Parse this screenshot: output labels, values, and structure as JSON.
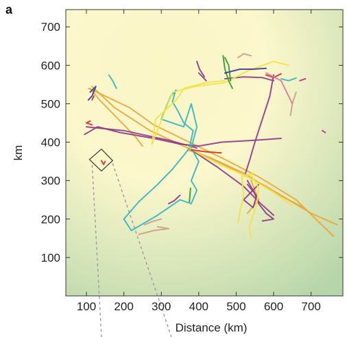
{
  "panel_label": "a",
  "chart_data": {
    "type": "line",
    "xlabel": "Distance (km)",
    "ylabel": "km",
    "xlim": [
      45,
      785
    ],
    "ylim": [
      0,
      745
    ],
    "xticks": [
      100,
      200,
      300,
      400,
      500,
      600,
      700
    ],
    "yticks": [
      100,
      200,
      300,
      400,
      500,
      600,
      700
    ],
    "xtick_labels": [
      "100",
      "200",
      "300",
      "400",
      "500",
      "600",
      "700"
    ],
    "ytick_labels": [
      "100",
      "200",
      "300",
      "400",
      "500",
      "600",
      "700"
    ],
    "background": {
      "warm": "#fbf6c6",
      "cool": "#b6d5a9"
    },
    "colors": {
      "orange": "#e7a93a",
      "purple": "#8e3a8c",
      "cyan": "#33b5c7",
      "yellow": "#f1e34a",
      "green": "#2f9a3c",
      "red": "#d6312a",
      "navy": "#3b3c97",
      "tan": "#c9a08b",
      "magenta": "#c02c8f",
      "pink": "#d97aa0"
    },
    "inset_box": [
      [
        108,
        355
      ],
      [
        140,
        382
      ],
      [
        170,
        352
      ],
      [
        140,
        325
      ]
    ],
    "series": [
      {
        "color": "orange",
        "points": [
          [
            105,
            540
          ],
          [
            150,
            520
          ],
          [
            215,
            490
          ],
          [
            280,
            445
          ],
          [
            375,
            400
          ],
          [
            470,
            355
          ],
          [
            560,
            310
          ],
          [
            660,
            250
          ],
          [
            760,
            155
          ]
        ]
      },
      {
        "color": "orange",
        "points": [
          [
            110,
            540
          ],
          [
            135,
            510
          ],
          [
            165,
            480
          ],
          [
            200,
            445
          ],
          [
            230,
            415
          ],
          [
            250,
            390
          ]
        ]
      },
      {
        "color": "orange",
        "points": [
          [
            115,
            545
          ],
          [
            175,
            490
          ],
          [
            270,
            430
          ],
          [
            370,
            385
          ],
          [
            470,
            340
          ],
          [
            580,
            285
          ],
          [
            700,
            215
          ],
          [
            770,
            185
          ]
        ]
      },
      {
        "color": "orange",
        "points": [
          [
            370,
            380
          ],
          [
            430,
            360
          ],
          [
            520,
            320
          ],
          [
            600,
            270
          ],
          [
            680,
            230
          ]
        ]
      },
      {
        "color": "orange",
        "points": [
          [
            540,
            300
          ],
          [
            560,
            250
          ],
          [
            530,
            215
          ]
        ]
      },
      {
        "color": "purple",
        "points": [
          [
            95,
            420
          ],
          [
            130,
            440
          ],
          [
            190,
            425
          ],
          [
            280,
            410
          ],
          [
            350,
            395
          ],
          [
            400,
            390
          ],
          [
            460,
            400
          ],
          [
            550,
            405
          ],
          [
            620,
            410
          ]
        ]
      },
      {
        "color": "purple",
        "points": [
          [
            100,
            440
          ],
          [
            200,
            430
          ],
          [
            320,
            405
          ],
          [
            395,
            385
          ]
        ]
      },
      {
        "color": "purple",
        "points": [
          [
            380,
            380
          ],
          [
            450,
            335
          ],
          [
            520,
            285
          ],
          [
            560,
            245
          ],
          [
            600,
            210
          ]
        ]
      },
      {
        "color": "purple",
        "points": [
          [
            530,
            300
          ],
          [
            548,
            270
          ],
          [
            560,
            240
          ],
          [
            580,
            215
          ],
          [
            600,
            200
          ],
          [
            570,
            195
          ]
        ]
      },
      {
        "color": "purple",
        "points": [
          [
            530,
            290
          ],
          [
            555,
            260
          ],
          [
            545,
            230
          ],
          [
            520,
            250
          ],
          [
            545,
            275
          ],
          [
            560,
            290
          ]
        ]
      },
      {
        "color": "purple",
        "points": [
          [
            470,
            565
          ],
          [
            520,
            570
          ],
          [
            570,
            568
          ],
          [
            600,
            560
          ]
        ]
      },
      {
        "color": "purple",
        "points": [
          [
            600,
            575
          ],
          [
            590,
            520
          ],
          [
            570,
            460
          ],
          [
            550,
            400
          ],
          [
            535,
            350
          ],
          [
            525,
            320
          ]
        ]
      },
      {
        "color": "purple",
        "points": [
          [
            400,
            580
          ],
          [
            420,
            560
          ]
        ]
      },
      {
        "color": "purple",
        "points": [
          [
            320,
            240
          ],
          [
            335,
            248
          ],
          [
            350,
            262
          ]
        ]
      },
      {
        "color": "purple",
        "points": [
          [
            395,
            610
          ],
          [
            402,
            590
          ],
          [
            415,
            570
          ]
        ]
      },
      {
        "color": "cyan",
        "points": [
          [
            380,
            390
          ],
          [
            330,
            330
          ],
          [
            290,
            290
          ],
          [
            240,
            245
          ],
          [
            200,
            200
          ],
          [
            220,
            170
          ],
          [
            290,
            210
          ],
          [
            350,
            250
          ],
          [
            380,
            240
          ],
          [
            395,
            275
          ],
          [
            380,
            300
          ],
          [
            400,
            350
          ],
          [
            380,
            385
          ],
          [
            395,
            440
          ],
          [
            380,
            500
          ],
          [
            360,
            440
          ],
          [
            300,
            460
          ],
          [
            325,
            520
          ],
          [
            340,
            535
          ]
        ]
      },
      {
        "color": "cyan",
        "points": [
          [
            375,
            385
          ],
          [
            385,
            430
          ],
          [
            360,
            450
          ],
          [
            345,
            480
          ],
          [
            330,
            505
          ],
          [
            338,
            535
          ]
        ]
      },
      {
        "color": "cyan",
        "points": [
          [
            180,
            540
          ],
          [
            170,
            560
          ],
          [
            160,
            575
          ]
        ]
      },
      {
        "color": "cyan",
        "points": [
          [
            620,
            565
          ],
          [
            640,
            560
          ],
          [
            660,
            567
          ]
        ]
      },
      {
        "color": "yellow",
        "points": [
          [
            275,
            395
          ],
          [
            285,
            460
          ],
          [
            340,
            510
          ],
          [
            360,
            540
          ],
          [
            420,
            555
          ],
          [
            470,
            560
          ]
        ]
      },
      {
        "color": "yellow",
        "points": [
          [
            275,
            395
          ],
          [
            330,
            530
          ],
          [
            390,
            545
          ],
          [
            470,
            555
          ],
          [
            530,
            585
          ],
          [
            600,
            610
          ],
          [
            640,
            600
          ]
        ]
      },
      {
        "color": "yellow",
        "points": [
          [
            370,
            390
          ],
          [
            400,
            370
          ],
          [
            460,
            340
          ],
          [
            530,
            310
          ],
          [
            600,
            270
          ],
          [
            650,
            235
          ]
        ]
      },
      {
        "color": "yellow",
        "points": [
          [
            540,
            315
          ],
          [
            560,
            280
          ],
          [
            555,
            240
          ],
          [
            535,
            180
          ],
          [
            540,
            150
          ]
        ]
      },
      {
        "color": "yellow",
        "points": [
          [
            515,
            315
          ],
          [
            520,
            260
          ],
          [
            510,
            220
          ],
          [
            505,
            190
          ]
        ]
      },
      {
        "color": "yellow",
        "points": [
          [
            520,
            310
          ],
          [
            545,
            320
          ]
        ]
      },
      {
        "color": "green",
        "points": [
          [
            465,
            625
          ],
          [
            470,
            590
          ],
          [
            480,
            560
          ],
          [
            490,
            540
          ]
        ]
      },
      {
        "color": "green",
        "points": [
          [
            485,
            560
          ],
          [
            480,
            600
          ],
          [
            470,
            620
          ]
        ]
      },
      {
        "color": "green",
        "points": [
          [
            375,
            245
          ],
          [
            378,
            280
          ]
        ]
      },
      {
        "color": "red",
        "points": [
          [
            110,
            455
          ],
          [
            100,
            450
          ],
          [
            115,
            445
          ]
        ]
      },
      {
        "color": "red",
        "points": [
          [
            120,
            520
          ],
          [
            115,
            510
          ]
        ]
      },
      {
        "color": "red",
        "points": [
          [
            380,
            380
          ],
          [
            420,
            375
          ],
          [
            460,
            372
          ]
        ]
      },
      {
        "color": "red",
        "points": [
          [
            580,
            575
          ],
          [
            600,
            568
          ],
          [
            620,
            578
          ]
        ]
      },
      {
        "color": "red",
        "points": [
          [
            140,
            352
          ],
          [
            146,
            342
          ],
          [
            150,
            350
          ]
        ]
      },
      {
        "color": "navy",
        "points": [
          [
            110,
            530
          ],
          [
            125,
            545
          ],
          [
            115,
            520
          ],
          [
            105,
            510
          ]
        ]
      },
      {
        "color": "navy",
        "points": [
          [
            470,
            580
          ],
          [
            510,
            590
          ],
          [
            545,
            590
          ],
          [
            580,
            592
          ]
        ]
      },
      {
        "color": "tan",
        "points": [
          [
            240,
            160
          ],
          [
            280,
            170
          ],
          [
            320,
            175
          ],
          [
            290,
            180
          ]
        ]
      },
      {
        "color": "tan",
        "points": [
          [
            255,
            185
          ],
          [
            280,
            195
          ],
          [
            300,
            200
          ]
        ]
      },
      {
        "color": "tan",
        "points": [
          [
            540,
            625
          ],
          [
            520,
            630
          ],
          [
            505,
            620
          ]
        ]
      },
      {
        "color": "tan",
        "points": [
          [
            660,
            530
          ],
          [
            650,
            500
          ],
          [
            645,
            470
          ]
        ]
      },
      {
        "color": "magenta",
        "points": [
          [
            670,
            560
          ],
          [
            685,
            565
          ]
        ]
      },
      {
        "color": "magenta",
        "points": [
          [
            730,
            430
          ],
          [
            738,
            425
          ]
        ]
      },
      {
        "color": "pink",
        "points": [
          [
            580,
            580
          ],
          [
            620,
            560
          ],
          [
            640,
            520
          ],
          [
            650,
            500
          ]
        ]
      }
    ]
  }
}
